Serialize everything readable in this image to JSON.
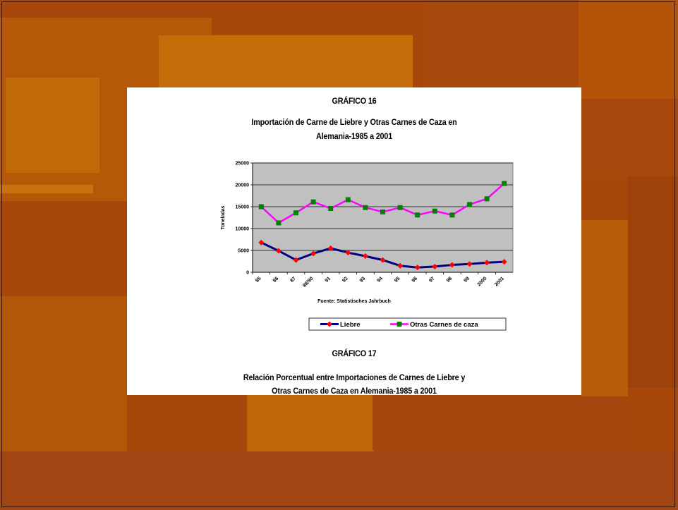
{
  "chart1": {
    "heading": "GRÁFICO 16",
    "title_line1": "Importación de Carne de Liebre y Otras Carnes de Caza en",
    "title_line2": "Alemania-1985 a 2001",
    "source": "Fuente: Statistisches Jahrbuch"
  },
  "chart2": {
    "heading": "GRÁFICO 17",
    "title_line1": "Relación Porcentual entre Importaciones de Carnes de Liebre y",
    "title_line2": "Otras Carnes de Caza en Alemania-1985 a 2001"
  },
  "colors": {
    "liebre": "#000080",
    "liebre_marker": "#ff0000",
    "otras": "#ff00ff",
    "otras_marker": "#008000",
    "plot_bg": "#c0c0c0"
  },
  "chart_data": {
    "type": "line",
    "title": "Importación de Carne de Liebre y Otras Carnes de Caza en Alemania-1985 a 2001",
    "xlabel": "",
    "ylabel": "Toneladas",
    "categories": [
      "85",
      "86",
      "87",
      "88/90",
      "91",
      "92",
      "93",
      "94",
      "95",
      "96",
      "97",
      "98",
      "99",
      "2000",
      "2001"
    ],
    "ylim": [
      0,
      25000
    ],
    "yticks": [
      0,
      5000,
      10000,
      15000,
      20000,
      25000
    ],
    "grid": true,
    "legend": "bottom",
    "series": [
      {
        "name": "Liebre",
        "values": [
          6800,
          4900,
          2800,
          4300,
          5500,
          4500,
          3700,
          2800,
          1500,
          1100,
          1300,
          1700,
          1900,
          2200,
          2400
        ]
      },
      {
        "name": "Otras Carnes de caza",
        "values": [
          15000,
          11300,
          13600,
          16100,
          14600,
          16600,
          14800,
          13800,
          14800,
          13100,
          14000,
          13100,
          15500,
          16800,
          20300
        ]
      }
    ]
  }
}
